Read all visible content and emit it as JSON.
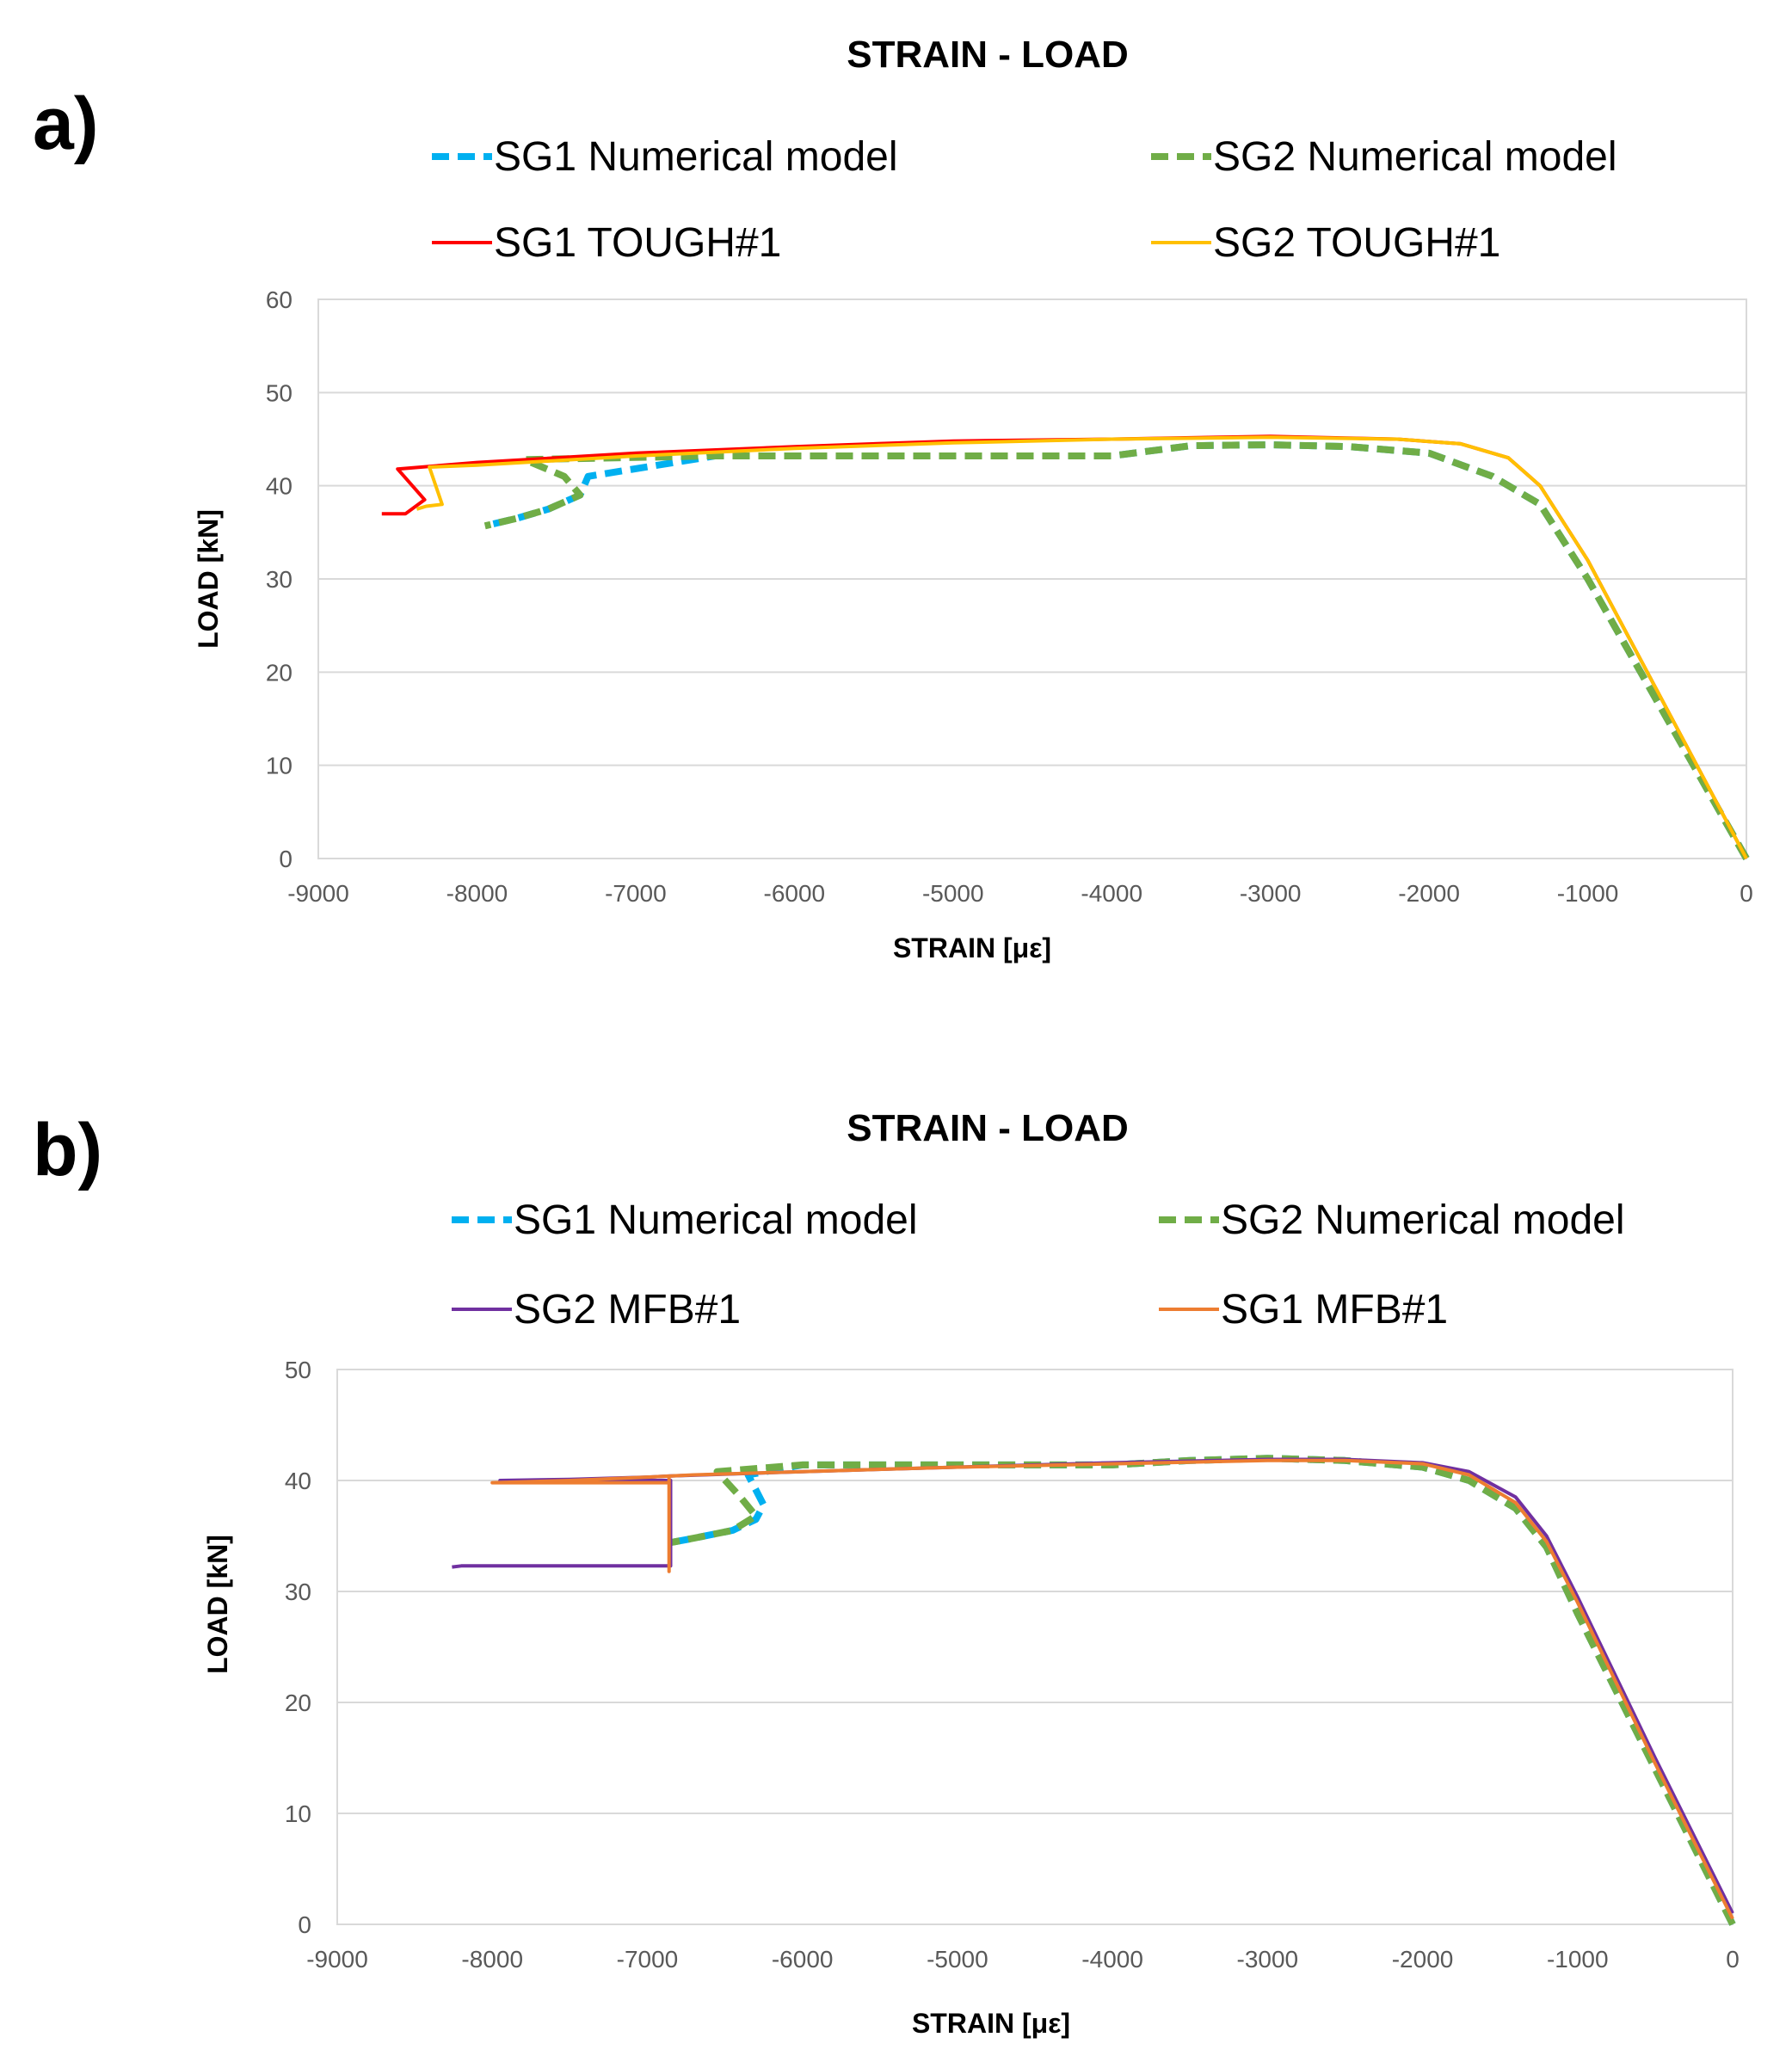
{
  "chart_data": [
    {
      "panel_label": "a)",
      "type": "line",
      "title": "STRAIN - LOAD",
      "xlabel": "STRAIN [με]",
      "ylabel": "LOAD [kN]",
      "xlim": [
        -9000,
        0
      ],
      "ylim": [
        0,
        60
      ],
      "xticks": [
        "-9000",
        "-8000",
        "-7000",
        "-6000",
        "-5000",
        "-4000",
        "-3000",
        "-2000",
        "-1000",
        "0"
      ],
      "yticks": [
        "0",
        "10",
        "20",
        "30",
        "40",
        "50",
        "60"
      ],
      "legend": "top",
      "series": [
        {
          "name": "SG1 Numerical model",
          "color": "#00b0f0",
          "dash": "dashed",
          "x": [
            0,
            -500,
            -1000,
            -1300,
            -1600,
            -2000,
            -2500,
            -3000,
            -3500,
            -4000,
            -4500,
            -5500,
            -6500,
            -7300,
            -7350,
            -7550,
            -7750,
            -7950
          ],
          "y": [
            0,
            15,
            30,
            38,
            41,
            43.5,
            44.2,
            44.4,
            44.3,
            43.2,
            43.2,
            43.2,
            43.2,
            41,
            39,
            37.5,
            36.5,
            35.7
          ]
        },
        {
          "name": "SG2 Numerical model",
          "color": "#70ad47",
          "dash": "dashed",
          "x": [
            0,
            -500,
            -1000,
            -1300,
            -1600,
            -2000,
            -2500,
            -3000,
            -3500,
            -4000,
            -4500,
            -5500,
            -6500,
            -7700,
            -7450,
            -7350,
            -7550,
            -7750,
            -7950
          ],
          "y": [
            0,
            15,
            30,
            38,
            41,
            43.5,
            44.2,
            44.4,
            44.3,
            43.2,
            43.2,
            43.2,
            43.2,
            42.8,
            41,
            39,
            37.5,
            36.5,
            35.7
          ]
        },
        {
          "name": "SG1 TOUGH#1",
          "color": "#ff0000",
          "dash": "solid",
          "x": [
            0,
            -500,
            -1000,
            -1300,
            -1500,
            -1800,
            -2200,
            -3000,
            -4000,
            -5000,
            -6000,
            -7000,
            -8000,
            -8500,
            -8330,
            -8450,
            -8600
          ],
          "y": [
            0,
            16,
            32,
            40,
            43,
            44.5,
            45,
            45.3,
            45,
            44.8,
            44.2,
            43.5,
            42.5,
            41.8,
            38.5,
            37,
            37
          ]
        },
        {
          "name": "SG2 TOUGH#1",
          "color": "#ffc000",
          "dash": "solid",
          "x": [
            0,
            -500,
            -1000,
            -1300,
            -1500,
            -1800,
            -2200,
            -3000,
            -4000,
            -5000,
            -6000,
            -7000,
            -8000,
            -8300,
            -8220,
            -8320,
            -8380
          ],
          "y": [
            0,
            16,
            32,
            40,
            43,
            44.5,
            45,
            45.2,
            45,
            44.6,
            44,
            43.2,
            42.2,
            42,
            38,
            37.8,
            37.5
          ]
        }
      ]
    },
    {
      "panel_label": "b)",
      "type": "line",
      "title": "STRAIN - LOAD",
      "xlabel": "STRAIN [με]",
      "ylabel": "LOAD [kN]",
      "xlim": [
        -9000,
        0
      ],
      "ylim": [
        0,
        50
      ],
      "xticks": [
        "-9000",
        "-8000",
        "-7000",
        "-6000",
        "-5000",
        "-4000",
        "-3000",
        "-2000",
        "-1000",
        "0"
      ],
      "yticks": [
        "0",
        "10",
        "20",
        "30",
        "40",
        "50"
      ],
      "legend": "top",
      "series": [
        {
          "name": "SG1 Numerical model",
          "color": "#00b0f0",
          "dash": "dashed",
          "x": [
            0,
            -500,
            -1000,
            -1200,
            -1400,
            -1700,
            -2000,
            -2500,
            -3000,
            -3500,
            -4000,
            -5000,
            -6000,
            -6350,
            -6250,
            -6300,
            -6450,
            -6700,
            -6850
          ],
          "y": [
            0,
            14,
            28,
            34,
            37.5,
            40,
            41.2,
            41.8,
            42,
            41.8,
            41.4,
            41.4,
            41.4,
            40.5,
            37.8,
            36.5,
            35.5,
            34.8,
            34.4
          ]
        },
        {
          "name": "SG2 Numerical model",
          "color": "#70ad47",
          "dash": "dashed",
          "x": [
            0,
            -500,
            -1000,
            -1200,
            -1400,
            -1700,
            -2000,
            -2500,
            -3000,
            -3500,
            -4000,
            -5000,
            -6000,
            -6550,
            -6400,
            -6300,
            -6450,
            -6700,
            -6850
          ],
          "y": [
            0,
            14,
            28,
            34,
            37.5,
            40,
            41.2,
            41.8,
            42,
            41.8,
            41.4,
            41.4,
            41.4,
            40.8,
            38.5,
            36.8,
            35.5,
            34.8,
            34.4
          ]
        },
        {
          "name": "SG2 MFB#1",
          "color": "#7030a0",
          "dash": "solid",
          "x": [
            0,
            -500,
            -1000,
            -1200,
            -1400,
            -1700,
            -2000,
            -2500,
            -3000,
            -4000,
            -5000,
            -6000,
            -6850,
            -7000,
            -7500,
            -7950,
            -6850,
            -6850,
            -7500,
            -8200,
            -8260
          ],
          "y": [
            1,
            15,
            29.5,
            35,
            38.5,
            40.8,
            41.6,
            41.9,
            41.9,
            41.6,
            41.2,
            40.8,
            40.4,
            40.3,
            40.1,
            40,
            40,
            32.3,
            32.3,
            32.3,
            32.2
          ]
        },
        {
          "name": "SG1 MFB#1",
          "color": "#ed7d31",
          "dash": "solid",
          "x": [
            0,
            -500,
            -1000,
            -1200,
            -1400,
            -1700,
            -2000,
            -2500,
            -3000,
            -4000,
            -5000,
            -6000,
            -6700,
            -7000,
            -7500,
            -8000,
            -6860,
            -6860,
            -6860
          ],
          "y": [
            0.5,
            14.5,
            29,
            34.5,
            38,
            40.5,
            41.5,
            41.8,
            41.8,
            41.5,
            41.2,
            40.8,
            40.5,
            40.3,
            40,
            39.8,
            39.8,
            31.8,
            40.3
          ]
        }
      ]
    }
  ]
}
